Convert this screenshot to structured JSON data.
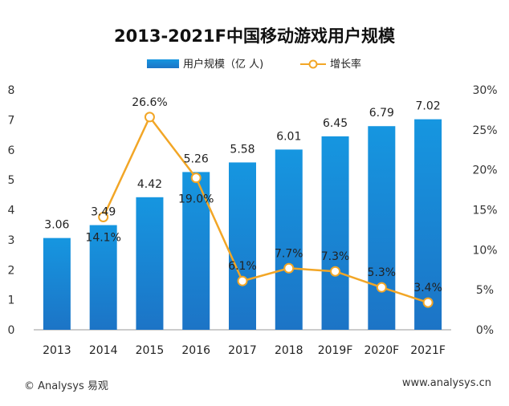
{
  "chart_data": {
    "type": "bar",
    "title": "2013-2021F中国移动游戏用户规模",
    "categories": [
      "2013",
      "2014",
      "2015",
      "2016",
      "2017",
      "2018",
      "2019F",
      "2020F",
      "2021F"
    ],
    "series": [
      {
        "name": "用户规模（亿 人)",
        "type": "bar",
        "axis": "left",
        "color": "#1a8fd8",
        "values": [
          3.06,
          3.49,
          4.42,
          5.26,
          5.58,
          6.01,
          6.45,
          6.79,
          7.02
        ],
        "labels": [
          "3.06",
          "3.49",
          "4.42",
          "5.26",
          "5.58",
          "6.01",
          "6.45",
          "6.79",
          "7.02"
        ]
      },
      {
        "name": "增长率",
        "type": "line",
        "axis": "right",
        "color": "#f2a626",
        "values": [
          null,
          14.1,
          26.6,
          19.0,
          6.1,
          7.7,
          7.3,
          5.3,
          3.4
        ],
        "labels": [
          "",
          "14.1%",
          "26.6%",
          "19.0%",
          "6.1%",
          "7.7%",
          "7.3%",
          "5.3%",
          "3.4%"
        ]
      }
    ],
    "y_left": {
      "min": 0,
      "max": 8,
      "ticks": [
        "0",
        "1",
        "2",
        "3",
        "4",
        "5",
        "6",
        "7",
        "8"
      ]
    },
    "y_right": {
      "min": 0,
      "max": 30,
      "ticks": [
        "0%",
        "5%",
        "10%",
        "15%",
        "20%",
        "25%",
        "30%"
      ]
    },
    "legend_position": "top-center",
    "grid": false
  },
  "footer": {
    "left": "© Analysys 易观",
    "right": "www.analysys.cn"
  }
}
